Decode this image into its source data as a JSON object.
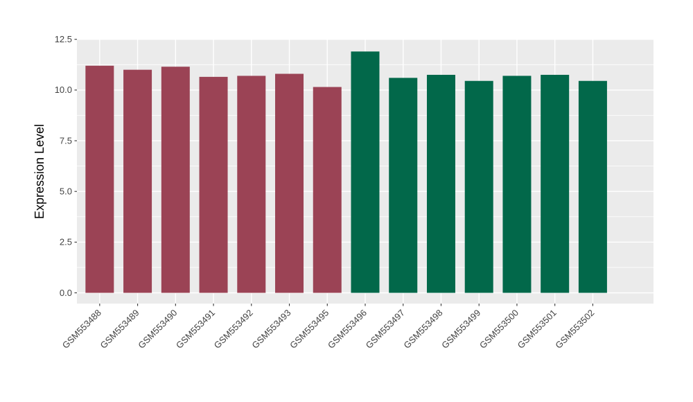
{
  "figure": {
    "background": "#FFFFFF",
    "panel_background": "#EBEBEB",
    "grid_color": "#FFFFFF",
    "tick_mark_color": "#333333",
    "axis_text_color": "#424242",
    "axis_title_color": "#000000"
  },
  "chart_data": {
    "type": "bar",
    "title": "",
    "xlabel": "",
    "ylabel": "Expression Level",
    "categories": [
      "GSM553488",
      "GSM553489",
      "GSM553490",
      "GSM553491",
      "GSM553492",
      "GSM553493",
      "GSM553495",
      "GSM553496",
      "GSM553497",
      "GSM553498",
      "GSM553499",
      "GSM553500",
      "GSM553501",
      "GSM553502"
    ],
    "values": [
      11.2,
      11.0,
      11.15,
      10.65,
      10.7,
      10.8,
      10.15,
      11.9,
      10.6,
      10.75,
      10.45,
      10.7,
      10.75,
      10.45
    ],
    "bar_colors": [
      "#9B4355",
      "#9B4355",
      "#9B4355",
      "#9B4355",
      "#9B4355",
      "#9B4355",
      "#9B4355",
      "#02684A",
      "#02684A",
      "#02684A",
      "#02684A",
      "#02684A",
      "#02684A",
      "#02684A"
    ],
    "palette": {
      "maroon_group": "#9B4355",
      "green_group": "#02684A"
    },
    "ytick_labels": [
      "0.0",
      "2.5",
      "5.0",
      "7.5",
      "10.0",
      "12.5"
    ],
    "ytick_values": [
      0,
      2.5,
      5,
      7.5,
      10,
      12.5
    ],
    "yminor_values": [
      1.25,
      3.75,
      6.25,
      8.75,
      11.25
    ],
    "ylim": [
      -0.55,
      12.5
    ],
    "grid": "white major and minor horizontal lines, major vertical lines at category centers",
    "legend_position": "none",
    "x_label_rotation_deg": 45
  }
}
